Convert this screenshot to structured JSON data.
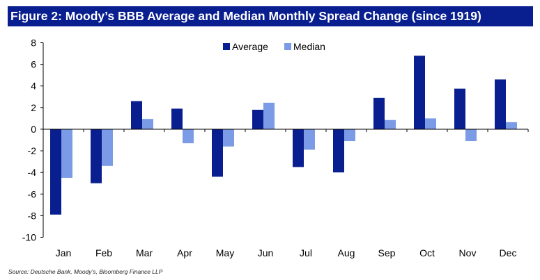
{
  "chart_data": {
    "type": "bar",
    "title": "Figure 2: Moody’s BBB Average and Median Monthly Spread Change (since 1919)",
    "categories": [
      "Jan",
      "Feb",
      "Mar",
      "Apr",
      "May",
      "Jun",
      "Jul",
      "Aug",
      "Sep",
      "Oct",
      "Nov",
      "Dec"
    ],
    "series": [
      {
        "name": "Average",
        "color": "#0a1f8f",
        "values": [
          -7.9,
          -5.0,
          2.6,
          1.9,
          -4.4,
          1.8,
          -3.5,
          -4.0,
          2.9,
          6.8,
          3.75,
          4.6
        ]
      },
      {
        "name": "Median",
        "color": "#7b9be6",
        "values": [
          -4.5,
          -3.4,
          0.95,
          -1.3,
          -1.6,
          2.45,
          -1.9,
          -1.1,
          0.85,
          1.0,
          -1.1,
          0.65
        ]
      }
    ],
    "ylim": [
      -10,
      8
    ],
    "yticks": [
      8,
      6,
      4,
      2,
      0,
      -2,
      -4,
      -6,
      -8,
      -10
    ],
    "xlabel": "",
    "ylabel": "",
    "legend": "top-center",
    "grid": false
  },
  "source": "Source: Deutsche Bank, Moody’s, Bloomberg Finance LLP"
}
